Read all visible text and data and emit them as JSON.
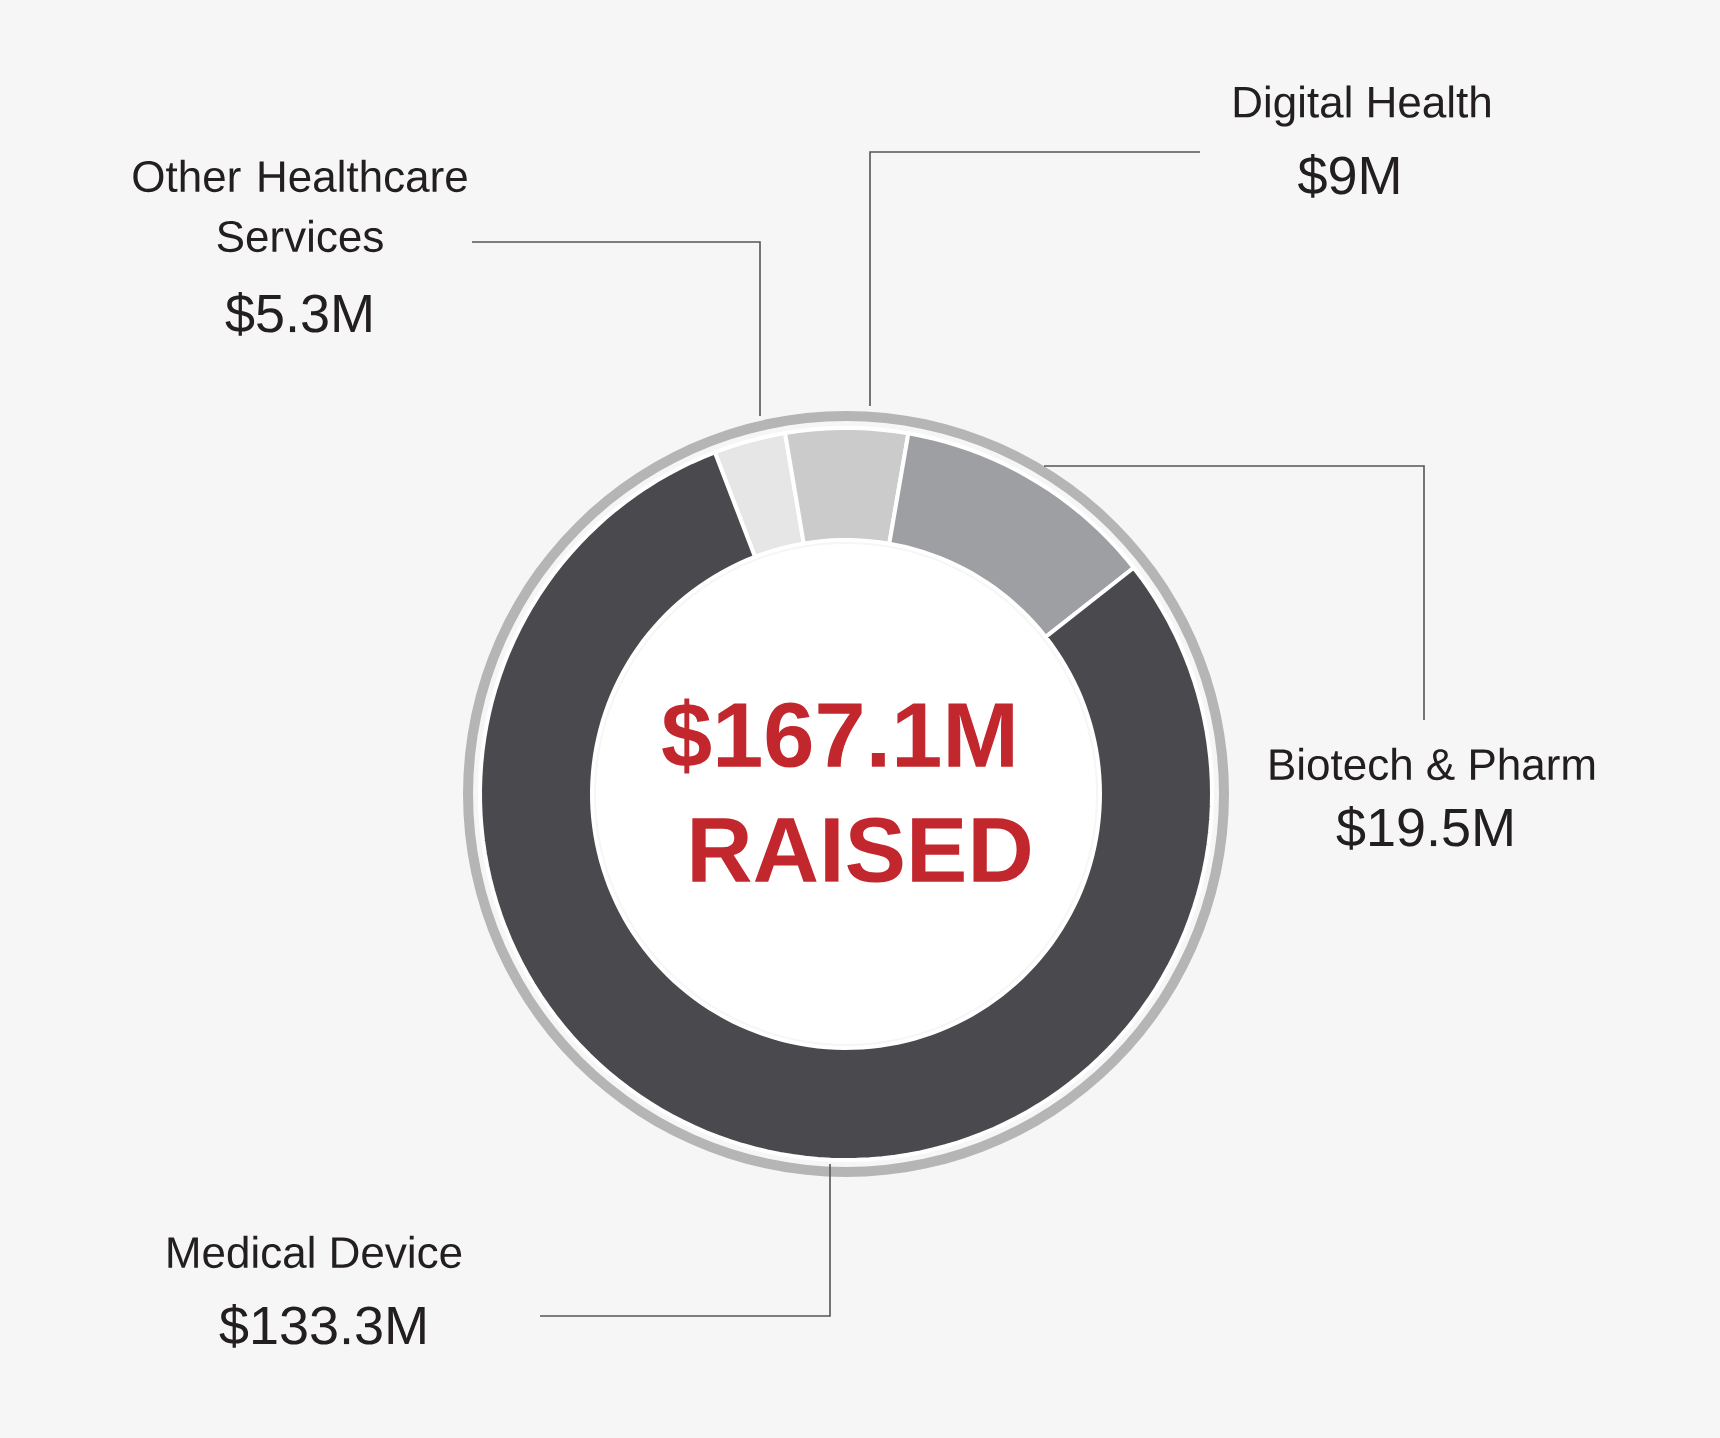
{
  "chart_data": {
    "type": "donut",
    "categories": [
      "Other Healthcare Services",
      "Digital Health",
      "Biotech & Pharm",
      "Medical Device"
    ],
    "values": [
      5.3,
      9,
      19.5,
      133.3
    ],
    "value_labels": [
      "$5.3M",
      "$9M",
      "$19.5M",
      "$133.3M"
    ],
    "colors": [
      "#e6e6e6",
      "#cbcbcc",
      "#9d9fa2",
      "#4a494d"
    ],
    "annotations": [
      "$167.1M",
      "RAISED"
    ]
  }
}
